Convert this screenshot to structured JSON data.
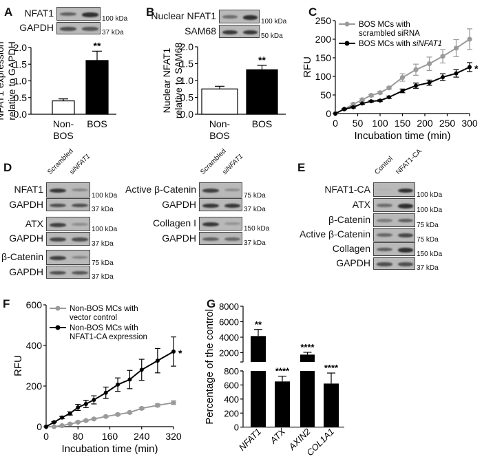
{
  "panels": {
    "A": "A",
    "B": "B",
    "C": "C",
    "D": "D",
    "E": "E",
    "F": "F",
    "G": "G"
  },
  "blots": {
    "A": {
      "rows": [
        {
          "label": "NFAT1",
          "kda": "100 kDa",
          "bands": [
            0.6,
            0.9
          ]
        },
        {
          "label": "GAPDH",
          "kda": "37 kDa",
          "bands": [
            0.7,
            0.65
          ]
        }
      ]
    },
    "B": {
      "rows": [
        {
          "label": "Nuclear NFAT1",
          "kda": "100 kDa",
          "bands": [
            0.5,
            0.9
          ]
        },
        {
          "label": "SAM68",
          "kda": "50 kDa",
          "bands": [
            0.85,
            0.85
          ]
        }
      ]
    },
    "D_left": {
      "lanes": [
        "Scrambled",
        "siNFAT1"
      ],
      "rows": [
        {
          "label": "NFAT1",
          "kda": "100 kDa",
          "bands": [
            0.85,
            0.35
          ]
        },
        {
          "label": "GAPDH",
          "kda": "37 kDa",
          "bands": [
            0.7,
            0.7
          ]
        },
        {
          "label": "ATX",
          "kda": "100 kDa",
          "bands": [
            0.8,
            0.3
          ]
        },
        {
          "label": "GAPDH",
          "kda": "37 kDa",
          "bands": [
            0.75,
            0.7
          ]
        },
        {
          "label": "β-Catenin",
          "kda": "75 kDa",
          "bands": [
            0.8,
            0.35
          ]
        },
        {
          "label": "GAPDH",
          "kda": "37 kDa",
          "bands": [
            0.7,
            0.65
          ]
        }
      ]
    },
    "D_right": {
      "lanes": [
        "Scrambled",
        "siNFAT1"
      ],
      "rows": [
        {
          "label": "Active β-Catenin",
          "kda": "75 kDa",
          "bands": [
            0.8,
            0.3
          ]
        },
        {
          "label": "GAPDH",
          "kda": "37 kDa",
          "bands": [
            0.85,
            0.85
          ]
        },
        {
          "label": "Collagen I",
          "kda": "150 kDa",
          "bands": [
            0.85,
            0.25
          ]
        },
        {
          "label": "GAPDH",
          "kda": "37 kDa",
          "bands": [
            0.6,
            0.55
          ]
        }
      ]
    },
    "E": {
      "lanes": [
        "Control",
        "NFAT1-CA"
      ],
      "rows": [
        {
          "label": "NFAT1-CA",
          "kda": "100 kDa",
          "bands": [
            0.05,
            0.9
          ]
        },
        {
          "label": "ATX",
          "kda": "100 kDa",
          "bands": [
            0.5,
            0.9
          ]
        },
        {
          "label": "β-Catenin",
          "kda": "75 kDa",
          "bands": [
            0.4,
            0.6
          ]
        },
        {
          "label": "Active β-Catenin",
          "kda": "75 kDa",
          "bands": [
            0.55,
            0.75
          ]
        },
        {
          "label": "Collagen",
          "kda": "150 kDa",
          "bands": [
            0.6,
            0.9
          ]
        },
        {
          "label": "GAPDH",
          "kda": "37 kDa",
          "bands": [
            0.7,
            0.7
          ]
        }
      ]
    }
  },
  "chart_data": [
    {
      "id": "A",
      "type": "bar",
      "categories": [
        "Non-BOS",
        "BOS"
      ],
      "category_lines": [
        [
          "Non-",
          "BOS"
        ],
        [
          "BOS"
        ]
      ],
      "values": [
        0.4,
        1.61
      ],
      "errors": [
        0.06,
        0.28
      ],
      "colors": [
        "#ffffff",
        "#000000"
      ],
      "annotations": [
        "",
        "**"
      ],
      "ylabel": [
        "NFAT1 expression",
        "relative to GAPDH"
      ],
      "ylim": [
        0,
        2.0
      ],
      "yticks": [
        "0.0",
        "0.5",
        "1.0",
        "1.5",
        "2.0"
      ]
    },
    {
      "id": "B",
      "type": "bar",
      "categories": [
        "Non-BOS",
        "BOS"
      ],
      "category_lines": [
        [
          "Non-",
          "BOS"
        ],
        [
          "BOS"
        ]
      ],
      "values": [
        0.75,
        1.32
      ],
      "errors": [
        0.08,
        0.13
      ],
      "colors": [
        "#ffffff",
        "#000000"
      ],
      "annotations": [
        "",
        "**"
      ],
      "ylabel": [
        "Nuclear NFAT1",
        "relative to SAM68"
      ],
      "ylim": [
        0,
        2.0
      ],
      "yticks": [
        "0.0",
        "0.5",
        "1.0",
        "1.5",
        "2.0"
      ]
    },
    {
      "id": "C",
      "type": "line",
      "xlabel": "Incubation time (min)",
      "ylabel": "RFU",
      "xlim": [
        0,
        300
      ],
      "ylim": [
        0,
        250
      ],
      "xticks": [
        "0",
        "50",
        "100",
        "150",
        "200",
        "250",
        "300"
      ],
      "yticks": [
        "0",
        "50",
        "100",
        "150",
        "200",
        "250"
      ],
      "x": [
        0,
        20,
        40,
        60,
        80,
        100,
        120,
        150,
        180,
        210,
        240,
        270,
        300
      ],
      "series": [
        {
          "name": "BOS MCs with scrambled siRNA",
          "name_lines": [
            "BOS MCs with",
            "scrambled siRNA"
          ],
          "color": "#9a9a9a",
          "values": [
            0,
            12,
            25,
            37,
            49,
            56,
            69,
            97,
            118,
            134,
            154,
            176,
            200
          ],
          "errors": [
            0,
            2,
            3,
            3,
            3,
            3,
            3,
            10,
            15,
            18,
            18,
            23,
            28
          ]
        },
        {
          "name": "BOS MCs with siNFAT1",
          "name_lines": [
            "BOS MCs with siNFAT1"
          ],
          "color": "#000000",
          "values": [
            0,
            12,
            17,
            27,
            33,
            35,
            44,
            61,
            75,
            83,
            98,
            108,
            125
          ],
          "errors": [
            0,
            1,
            2,
            2,
            2,
            2,
            3,
            5,
            7,
            7,
            9,
            10,
            12
          ]
        }
      ],
      "annotation": "*",
      "legend": "top-left"
    },
    {
      "id": "F",
      "type": "line",
      "xlabel": "Incubation time (min)",
      "ylabel": "RFU",
      "xlim": [
        0,
        320
      ],
      "ylim": [
        0,
        600
      ],
      "xticks": [
        "0",
        "80",
        "160",
        "240",
        "320"
      ],
      "yticks": [
        "0",
        "200",
        "400",
        "600"
      ],
      "x": [
        0,
        20,
        40,
        60,
        80,
        100,
        120,
        150,
        180,
        210,
        240,
        280,
        320
      ],
      "series": [
        {
          "name": "Non-BOS MCs with vector control",
          "name_lines": [
            "Non-BOS MCs with",
            "vector control"
          ],
          "color": "#9a9a9a",
          "values": [
            0,
            0,
            5,
            13,
            22,
            30,
            38,
            50,
            60,
            70,
            90,
            105,
            118
          ],
          "errors": [
            0,
            0,
            2,
            3,
            3,
            3,
            3,
            4,
            4,
            5,
            6,
            7,
            9
          ]
        },
        {
          "name": "Non-BOS MCs with NFAT1-CA expression",
          "name_lines": [
            "Non-BOS MCs with",
            "NFAT1-CA expression"
          ],
          "color": "#000000",
          "values": [
            0,
            22,
            45,
            65,
            95,
            112,
            132,
            167,
            207,
            232,
            280,
            325,
            370
          ],
          "errors": [
            0,
            3,
            6,
            8,
            15,
            18,
            20,
            28,
            33,
            45,
            52,
            60,
            72
          ]
        }
      ],
      "annotation": "*",
      "legend": "top-left"
    },
    {
      "id": "G",
      "type": "bar",
      "categories": [
        "NFAT1",
        "ATX",
        "AXIN2",
        "COL1A1"
      ],
      "values": [
        4150,
        650,
        1750,
        620
      ],
      "errors": [
        850,
        75,
        300,
        150
      ],
      "annotations": [
        "**",
        "****",
        "****",
        "****"
      ],
      "ylabel": "Percentage of the control",
      "broken_axis": true,
      "ylim_lower": [
        0,
        800
      ],
      "ylim_upper": [
        800,
        8000
      ],
      "yticks_lower": [
        "0",
        "200",
        "400",
        "600",
        "800"
      ],
      "yticks_upper": [
        "2000",
        "4000",
        "6000",
        "8000"
      ]
    }
  ]
}
